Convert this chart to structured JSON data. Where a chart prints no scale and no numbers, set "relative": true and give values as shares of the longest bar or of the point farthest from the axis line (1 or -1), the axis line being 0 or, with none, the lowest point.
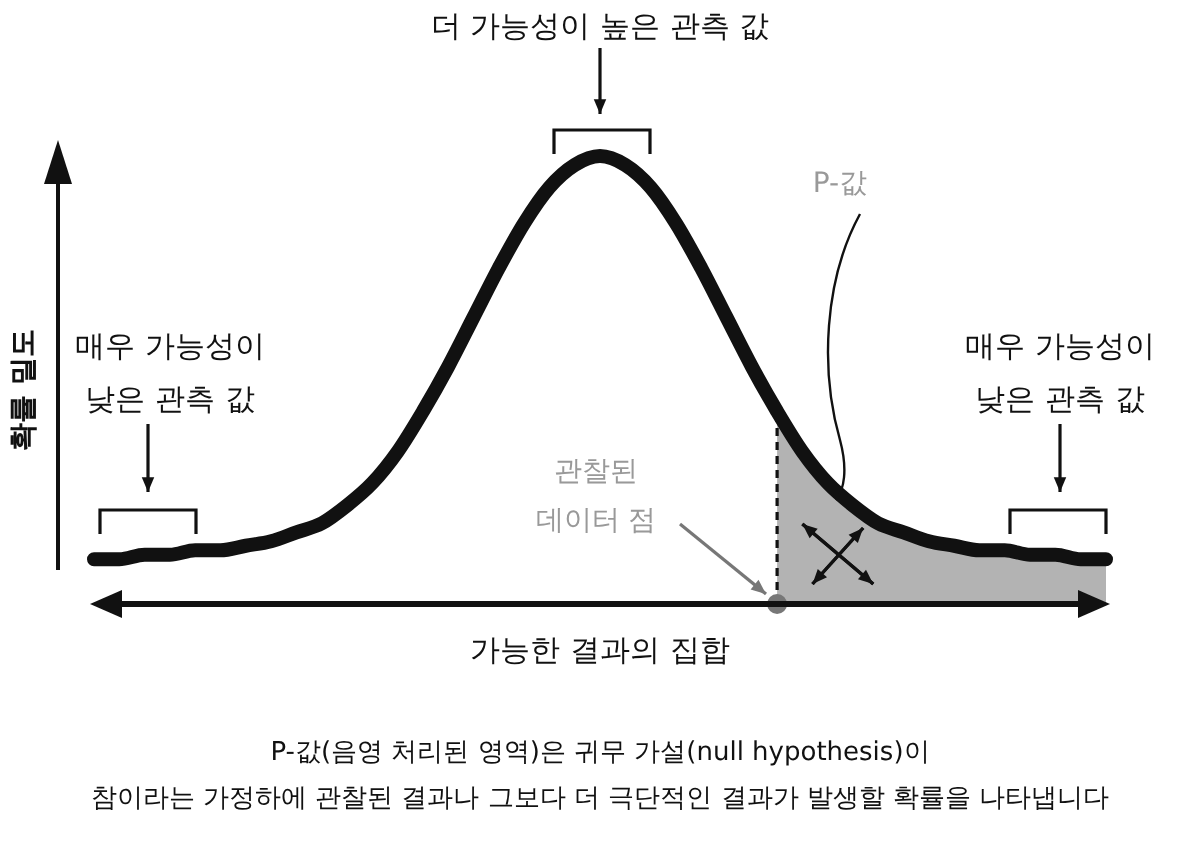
{
  "chart_data": {
    "type": "line",
    "relative": true,
    "xlabel": "가능한 결과의 집합",
    "ylabel": "확률 밀도",
    "categories": [
      null,
      null,
      null,
      null,
      null,
      null,
      null,
      null,
      null,
      null,
      null,
      null,
      null,
      null,
      null,
      null,
      null,
      null,
      null,
      null,
      null,
      null,
      null,
      null,
      null,
      null,
      null,
      null,
      null,
      null,
      null,
      null,
      null,
      null,
      null,
      null,
      null,
      null,
      null,
      null,
      null
    ],
    "series": [
      {
        "type": "area",
        "color": "#b3b3b3",
        "values": [
          null,
          null,
          null,
          null,
          null,
          null,
          null,
          null,
          null,
          null,
          null,
          null,
          null,
          null,
          null,
          null,
          null,
          null,
          null,
          null,
          null,
          null,
          null,
          null,
          null,
          null,
          null,
          0.43,
          0.34,
          0.27,
          0.22,
          0.18,
          0.16,
          0.14,
          0.13,
          0.12,
          0.12,
          0.11,
          0.11,
          0.1,
          0.1
        ]
      },
      {
        "color": "#111111",
        "values": [
          0.1,
          0.1,
          0.11,
          0.11,
          0.12,
          0.12,
          0.13,
          0.14,
          0.16,
          0.18,
          0.22,
          0.27,
          0.34,
          0.43,
          0.53,
          0.64,
          0.75,
          0.85,
          0.93,
          0.98,
          1.0,
          0.98,
          0.93,
          0.85,
          0.75,
          0.64,
          0.53,
          0.43,
          0.34,
          0.27,
          0.22,
          0.18,
          0.16,
          0.14,
          0.13,
          0.12,
          0.12,
          0.11,
          0.11,
          0.1,
          0.1
        ]
      }
    ],
    "annotations": [
      "더 가능성이 높은 관측 값",
      "P-값",
      "매우 가능성이\n낮은 관측 값",
      "매우 가능성이\n낮은 관측 값",
      "관찰된\n데이터 점",
      "P-값(음영 처리된 영역)은 귀무 가설(null hypothesis)이\n참이라는 가정하에 관찰된 결과나 그보다 더 극단적인 결과가 발생할 확률을 나타냅니다"
    ]
  }
}
